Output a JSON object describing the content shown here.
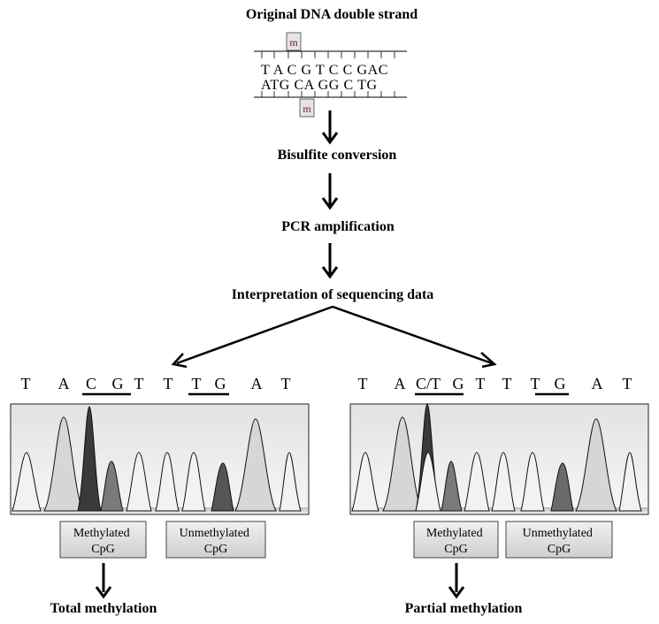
{
  "header": {
    "title": "Original DNA double strand"
  },
  "dna": {
    "methyl_label": "m",
    "top_strand": "T A C G T C C GAC",
    "bottom_strand": "ATG CA GG C TG"
  },
  "steps": [
    "Bisulfite conversion",
    "PCR amplification",
    "Interpretation of sequencing data"
  ],
  "panels": [
    {
      "bases": [
        "T",
        "A",
        "C",
        "G",
        "T",
        "T",
        "T",
        "G",
        "A",
        "T"
      ],
      "box_labels": [
        "Methylated\nCpG",
        "Unmethylated\nCpG"
      ],
      "outcome": "Total methylation"
    },
    {
      "bases": [
        "T",
        "A",
        "C/T",
        "G",
        "T",
        "T",
        "T",
        "G",
        "A",
        "T"
      ],
      "box_labels": [
        "Methylated\nCpG",
        "Unmethylated\nCpG"
      ],
      "outcome": "Partial methylation"
    }
  ],
  "colors": {
    "text": "#000000",
    "panel_bg_top": "#e6e6e6",
    "panel_bg_bottom": "#f6f6f6",
    "box_fill": "#d9d9d9",
    "peak_light": "#d2d2d2",
    "peak_dark": "#3a3a3a",
    "peak_mid": "#6e6e6e"
  }
}
